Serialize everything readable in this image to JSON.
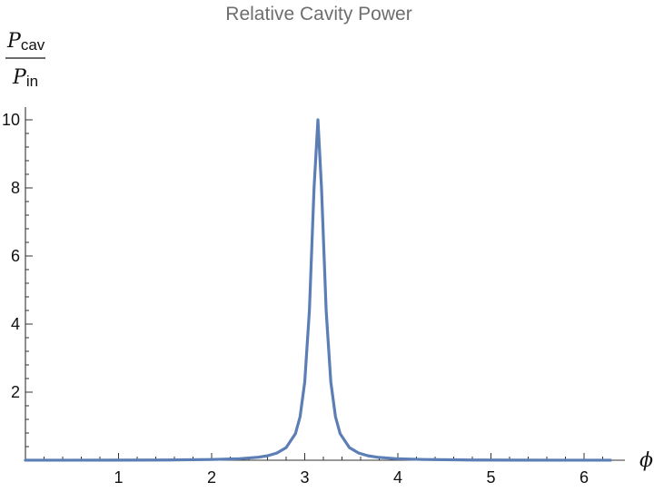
{
  "chart_data": {
    "type": "line",
    "title": "Relative Cavity Power",
    "ylabel": {
      "numerator": "P",
      "numerator_sub": "cav",
      "denominator": "P",
      "denominator_sub": "in"
    },
    "xlabel": "ϕ",
    "xlim": [
      0,
      6.2832
    ],
    "ylim": [
      0,
      10
    ],
    "xticks": [
      1,
      2,
      3,
      4,
      5,
      6
    ],
    "yticks": [
      2,
      4,
      6,
      8,
      10
    ],
    "x_minor_step": 0.2,
    "y_minor_step": 0.4,
    "series": [
      {
        "color": "#5b7eb5",
        "points": [
          [
            0.0,
            0.0011
          ],
          [
            0.5,
            0.0019
          ],
          [
            1.0,
            0.0035
          ],
          [
            1.5,
            0.0073
          ],
          [
            2.0,
            0.021
          ],
          [
            2.3,
            0.045
          ],
          [
            2.5,
            0.089
          ],
          [
            2.6,
            0.13
          ],
          [
            2.7,
            0.21
          ],
          [
            2.8,
            0.37
          ],
          [
            2.9,
            0.78
          ],
          [
            2.95,
            1.28
          ],
          [
            3.0,
            2.3
          ],
          [
            3.05,
            4.4
          ],
          [
            3.1,
            8.0
          ],
          [
            3.1416,
            10.0
          ],
          [
            3.18,
            8.0
          ],
          [
            3.23,
            4.4
          ],
          [
            3.28,
            2.3
          ],
          [
            3.33,
            1.28
          ],
          [
            3.38,
            0.78
          ],
          [
            3.48,
            0.37
          ],
          [
            3.58,
            0.21
          ],
          [
            3.68,
            0.13
          ],
          [
            3.78,
            0.089
          ],
          [
            3.98,
            0.045
          ],
          [
            4.28,
            0.021
          ],
          [
            4.78,
            0.0073
          ],
          [
            5.28,
            0.0035
          ],
          [
            5.78,
            0.0019
          ],
          [
            6.2832,
            0.0011
          ]
        ]
      }
    ]
  }
}
